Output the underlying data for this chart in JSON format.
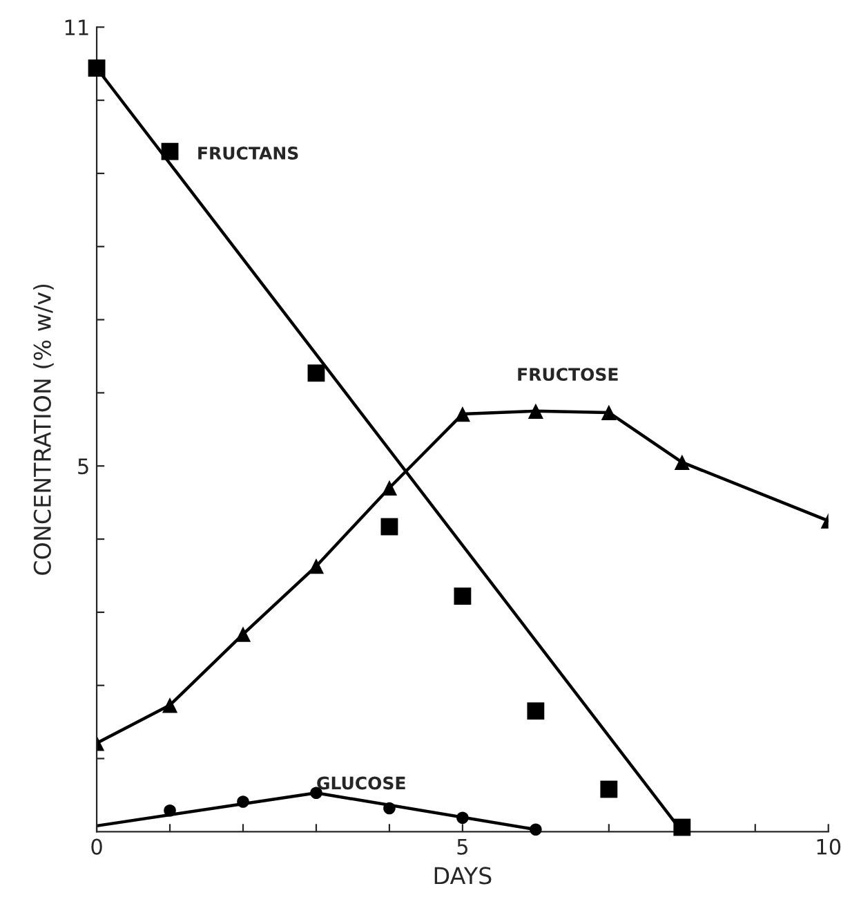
{
  "chart_data": {
    "type": "line",
    "xlabel": "DAYS",
    "ylabel": "CONCENTRATION (% w/v)",
    "xlim": [
      0,
      10
    ],
    "ylim": [
      0,
      11
    ],
    "xticks": [
      0,
      {
        "value": 1,
        "label": null
      },
      {
        "value": 2,
        "label": null
      },
      {
        "value": 3,
        "label": null
      },
      {
        "value": 4,
        "label": null
      },
      5,
      {
        "value": 6,
        "label": null
      },
      {
        "value": 7,
        "label": null
      },
      {
        "value": 8,
        "label": null
      },
      {
        "value": 9,
        "label": null
      },
      10
    ],
    "yticks": [
      {
        "value": 1,
        "label": null
      },
      {
        "value": 2,
        "label": null
      },
      {
        "value": 3,
        "label": null
      },
      {
        "value": 4,
        "label": null
      },
      5,
      {
        "value": 6,
        "label": null
      },
      {
        "value": 7,
        "label": null
      },
      {
        "value": 8,
        "label": null
      },
      {
        "value": 9,
        "label": null
      },
      {
        "value": 10,
        "label": null
      },
      11
    ],
    "grid": false,
    "legend": false,
    "series": [
      {
        "name": "FRUCTANS",
        "type": "scatter",
        "marker": "square",
        "color": "#000000",
        "x": [
          0,
          1,
          3,
          4,
          5,
          6,
          7,
          8
        ],
        "values": [
          10.44,
          9.3,
          6.27,
          4.17,
          3.22,
          1.65,
          0.58,
          0.06
        ]
      },
      {
        "marker": "none",
        "color": "#000000",
        "x": [
          0,
          8
        ],
        "values": [
          10.44,
          0
        ]
      },
      {
        "name": "FRUCTOSE",
        "marker": "triangle",
        "color": "#000000",
        "x": [
          0,
          1,
          2,
          3,
          4,
          5,
          6,
          7,
          8,
          10
        ],
        "values": [
          1.21,
          1.73,
          2.7,
          3.63,
          4.7,
          5.71,
          5.75,
          5.73,
          5.05,
          4.25
        ]
      },
      {
        "name": "GLUCOSE",
        "type": "scatter",
        "marker": "circle",
        "color": "#000000",
        "x": [
          1,
          2,
          3,
          4,
          5,
          6
        ],
        "values": [
          0.29,
          0.41,
          0.53,
          0.32,
          0.19,
          0.03
        ]
      },
      {
        "marker": "none",
        "color": "#000000",
        "x": [
          0,
          3,
          6
        ],
        "values": [
          0.08,
          0.53,
          0.03
        ]
      }
    ]
  }
}
